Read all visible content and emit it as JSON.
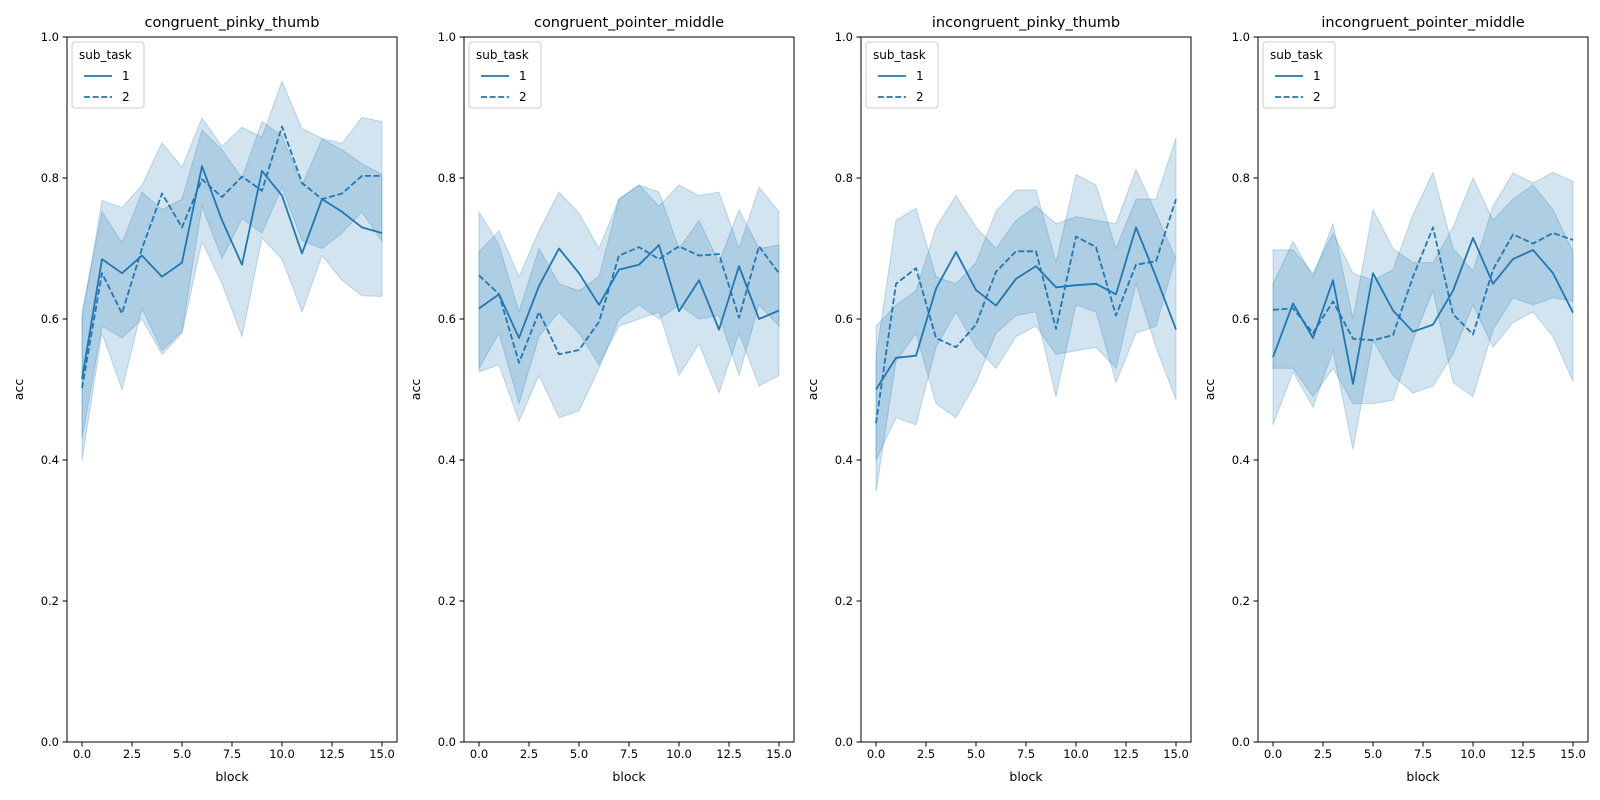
{
  "chart_data": {
    "type": "line",
    "shared": {
      "xlabel": "block",
      "ylabel": "acc",
      "xlim": [
        -0.75,
        15.75
      ],
      "ylim": [
        0.0,
        1.0
      ],
      "xticks": [
        0.0,
        2.5,
        5.0,
        7.5,
        10.0,
        12.5,
        15.0
      ],
      "xtick_labels": [
        "0.0",
        "2.5",
        "5.0",
        "7.5",
        "10.0",
        "12.5",
        "15.0"
      ],
      "yticks": [
        0.0,
        0.2,
        0.4,
        0.6,
        0.8,
        1.0
      ],
      "ytick_labels": [
        "0.0",
        "0.2",
        "0.4",
        "0.6",
        "0.8",
        "1.0"
      ],
      "grid": false,
      "legend": {
        "title": "sub_task",
        "placement": "upper-left"
      },
      "x": [
        0,
        1,
        2,
        3,
        4,
        5,
        6,
        7,
        8,
        9,
        10,
        11,
        12,
        13,
        14,
        15
      ],
      "line_color": "#1f77b4",
      "band_color": "#1f77b4"
    },
    "panels": [
      {
        "title": "congruent_pinky_thumb",
        "series": [
          {
            "name": "1",
            "style": "solid",
            "y": [
              0.515,
              0.685,
              0.665,
              0.69,
              0.66,
              0.68,
              0.817,
              0.74,
              0.677,
              0.81,
              0.775,
              0.693,
              0.77,
              0.752,
              0.73,
              0.722
            ],
            "lower": [
              0.43,
              0.59,
              0.573,
              0.6,
              0.55,
              0.58,
              0.71,
              0.65,
              0.575,
              0.715,
              0.685,
              0.61,
              0.69,
              0.655,
              0.633,
              0.632
            ],
            "upper": [
              0.61,
              0.752,
              0.708,
              0.78,
              0.755,
              0.77,
              0.868,
              0.84,
              0.8,
              0.88,
              0.86,
              0.79,
              0.855,
              0.84,
              0.82,
              0.805
            ]
          },
          {
            "name": "2",
            "style": "dashed",
            "y": [
              0.502,
              0.665,
              0.608,
              0.7,
              0.778,
              0.73,
              0.798,
              0.773,
              0.802,
              0.782,
              0.873,
              0.793,
              0.77,
              0.778,
              0.803,
              0.803
            ],
            "lower": [
              0.4,
              0.58,
              0.5,
              0.615,
              0.555,
              0.583,
              0.76,
              0.686,
              0.742,
              0.722,
              0.787,
              0.711,
              0.7,
              0.722,
              0.752,
              0.71
            ],
            "upper": [
              0.6,
              0.768,
              0.758,
              0.79,
              0.85,
              0.815,
              0.885,
              0.845,
              0.872,
              0.858,
              0.937,
              0.87,
              0.856,
              0.849,
              0.886,
              0.88
            ]
          }
        ]
      },
      {
        "title": "congruent_pointer_middle",
        "series": [
          {
            "name": "1",
            "style": "solid",
            "y": [
              0.615,
              0.635,
              0.573,
              0.647,
              0.7,
              0.665,
              0.62,
              0.67,
              0.677,
              0.705,
              0.611,
              0.655,
              0.585,
              0.675,
              0.6,
              0.612
            ],
            "lower": [
              0.53,
              0.58,
              0.48,
              0.575,
              0.61,
              0.58,
              0.535,
              0.59,
              0.6,
              0.61,
              0.52,
              0.565,
              0.495,
              0.58,
              0.505,
              0.52
            ],
            "upper": [
              0.695,
              0.725,
              0.66,
              0.725,
              0.78,
              0.75,
              0.7,
              0.77,
              0.79,
              0.78,
              0.7,
              0.74,
              0.68,
              0.755,
              0.7,
              0.705
            ]
          },
          {
            "name": "2",
            "style": "dashed",
            "y": [
              0.662,
              0.635,
              0.538,
              0.61,
              0.55,
              0.556,
              0.596,
              0.69,
              0.702,
              0.685,
              0.703,
              0.69,
              0.692,
              0.602,
              0.703,
              0.665
            ],
            "lower": [
              0.525,
              0.535,
              0.455,
              0.52,
              0.46,
              0.47,
              0.53,
              0.6,
              0.62,
              0.6,
              0.62,
              0.6,
              0.605,
              0.52,
              0.62,
              0.59
            ],
            "upper": [
              0.752,
              0.705,
              0.61,
              0.7,
              0.65,
              0.64,
              0.66,
              0.77,
              0.79,
              0.76,
              0.79,
              0.775,
              0.78,
              0.7,
              0.787,
              0.752
            ]
          }
        ]
      },
      {
        "title": "incongruent_pinky_thumb",
        "series": [
          {
            "name": "1",
            "style": "solid",
            "y": [
              0.5,
              0.545,
              0.548,
              0.643,
              0.695,
              0.641,
              0.619,
              0.657,
              0.675,
              0.645,
              0.648,
              0.65,
              0.635,
              0.73,
              0.66,
              0.585
            ],
            "lower": [
              0.4,
              0.46,
              0.45,
              0.56,
              0.61,
              0.56,
              0.53,
              0.575,
              0.59,
              0.55,
              0.555,
              0.56,
              0.53,
              0.65,
              0.56,
              0.485
            ],
            "upper": [
              0.59,
              0.62,
              0.64,
              0.73,
              0.775,
              0.73,
              0.7,
              0.74,
              0.76,
              0.735,
              0.745,
              0.74,
              0.735,
              0.812,
              0.75,
              0.685
            ]
          },
          {
            "name": "2",
            "style": "dashed",
            "y": [
              0.452,
              0.65,
              0.672,
              0.573,
              0.56,
              0.592,
              0.667,
              0.696,
              0.696,
              0.586,
              0.717,
              0.702,
              0.605,
              0.677,
              0.682,
              0.77
            ],
            "lower": [
              0.355,
              0.54,
              0.58,
              0.48,
              0.46,
              0.51,
              0.58,
              0.605,
              0.61,
              0.49,
              0.62,
              0.61,
              0.51,
              0.58,
              0.59,
              0.69
            ],
            "upper": [
              0.545,
              0.74,
              0.757,
              0.66,
              0.65,
              0.68,
              0.753,
              0.783,
              0.783,
              0.68,
              0.805,
              0.79,
              0.7,
              0.77,
              0.77,
              0.857
            ]
          }
        ]
      },
      {
        "title": "incongruent_pointer_middle",
        "series": [
          {
            "name": "1",
            "style": "solid",
            "y": [
              0.546,
              0.622,
              0.573,
              0.655,
              0.508,
              0.665,
              0.612,
              0.582,
              0.592,
              0.64,
              0.715,
              0.65,
              0.685,
              0.698,
              0.665,
              0.609
            ],
            "lower": [
              0.45,
              0.525,
              0.475,
              0.555,
              0.415,
              0.57,
              0.52,
              0.495,
              0.505,
              0.55,
              0.62,
              0.56,
              0.595,
              0.61,
              0.575,
              0.512
            ],
            "upper": [
              0.65,
              0.71,
              0.66,
              0.735,
              0.6,
              0.755,
              0.7,
              0.68,
              0.68,
              0.73,
              0.8,
              0.74,
              0.77,
              0.79,
              0.755,
              0.695
            ]
          },
          {
            "name": "2",
            "style": "dashed",
            "y": [
              0.613,
              0.615,
              0.58,
              0.625,
              0.572,
              0.57,
              0.577,
              0.66,
              0.73,
              0.607,
              0.578,
              0.67,
              0.72,
              0.707,
              0.722,
              0.712
            ],
            "lower": [
              0.53,
              0.53,
              0.49,
              0.53,
              0.48,
              0.48,
              0.485,
              0.57,
              0.64,
              0.51,
              0.49,
              0.585,
              0.63,
              0.62,
              0.63,
              0.625
            ],
            "upper": [
              0.698,
              0.698,
              0.665,
              0.722,
              0.665,
              0.655,
              0.67,
              0.748,
              0.808,
              0.7,
              0.668,
              0.76,
              0.807,
              0.793,
              0.808,
              0.795
            ]
          }
        ]
      }
    ]
  }
}
